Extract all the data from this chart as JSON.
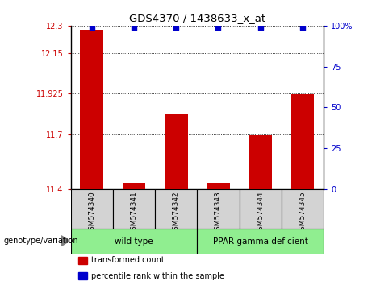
{
  "title": "GDS4370 / 1438633_x_at",
  "samples": [
    "GSM574340",
    "GSM574341",
    "GSM574342",
    "GSM574343",
    "GSM574344",
    "GSM574345"
  ],
  "bar_values": [
    12.275,
    11.435,
    11.815,
    11.435,
    11.695,
    11.92
  ],
  "percentile_values": [
    99,
    99,
    99,
    99,
    99,
    99
  ],
  "bar_color": "#cc0000",
  "dot_color": "#0000cc",
  "ylim_left": [
    11.4,
    12.3
  ],
  "ylim_right": [
    0,
    100
  ],
  "yticks_left": [
    11.4,
    11.7,
    11.925,
    12.15,
    12.3
  ],
  "ytick_labels_left": [
    "11.4",
    "11.7",
    "11.925",
    "12.15",
    "12.3"
  ],
  "yticks_right": [
    0,
    25,
    50,
    75,
    100
  ],
  "ytick_labels_right": [
    "0",
    "25",
    "50",
    "75",
    "100%"
  ],
  "groups": [
    {
      "label": "wild type",
      "indices": [
        0,
        1,
        2
      ],
      "color": "#90ee90"
    },
    {
      "label": "PPAR gamma deficient",
      "indices": [
        3,
        4,
        5
      ],
      "color": "#90ee90"
    }
  ],
  "group_label_prefix": "genotype/variation",
  "legend_items": [
    {
      "label": "transformed count",
      "color": "#cc0000"
    },
    {
      "label": "percentile rank within the sample",
      "color": "#0000cc"
    }
  ],
  "bar_width": 0.55,
  "background_color": "#ffffff",
  "box_color": "#d3d3d3",
  "tick_label_color_left": "#cc0000",
  "tick_label_color_right": "#0000cc"
}
